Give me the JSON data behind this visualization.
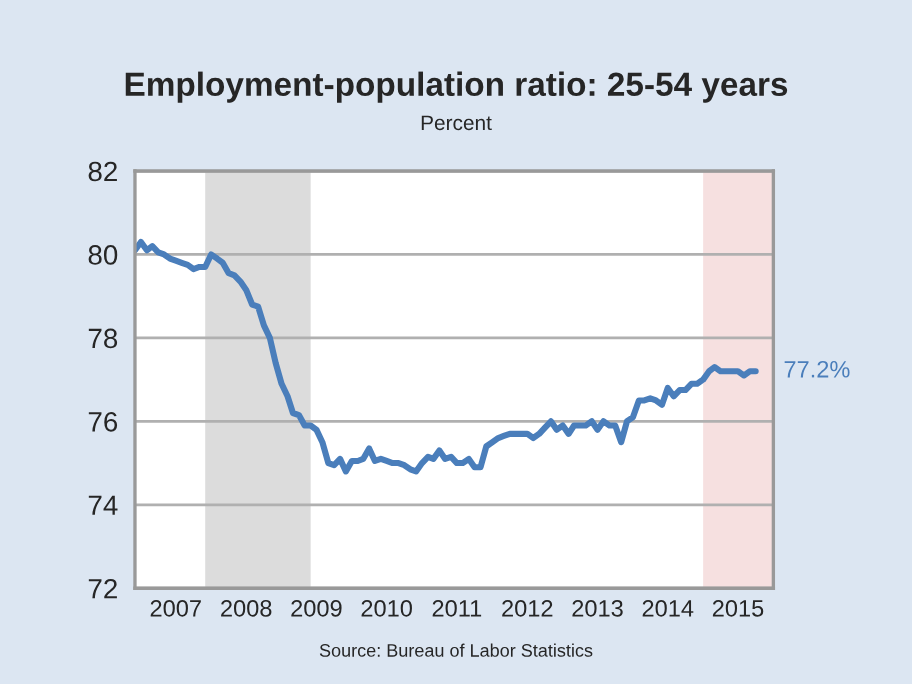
{
  "chart_data": {
    "type": "line",
    "title": "Employment-population ratio: 25-54 years",
    "subtitle": "Percent",
    "x": [
      "2006-12",
      "2007-01",
      "2007-02",
      "2007-03",
      "2007-04",
      "2007-05",
      "2007-06",
      "2007-07",
      "2007-08",
      "2007-09",
      "2007-10",
      "2007-11",
      "2007-12",
      "2008-01",
      "2008-02",
      "2008-03",
      "2008-04",
      "2008-05",
      "2008-06",
      "2008-07",
      "2008-08",
      "2008-09",
      "2008-10",
      "2008-11",
      "2008-12",
      "2009-01",
      "2009-02",
      "2009-03",
      "2009-04",
      "2009-05",
      "2009-06",
      "2009-07",
      "2009-08",
      "2009-09",
      "2009-10",
      "2009-11",
      "2009-12",
      "2010-01",
      "2010-02",
      "2010-03",
      "2010-04",
      "2010-05",
      "2010-06",
      "2010-07",
      "2010-08",
      "2010-09",
      "2010-10",
      "2010-11",
      "2010-12",
      "2011-01",
      "2011-02",
      "2011-03",
      "2011-04",
      "2011-05",
      "2011-06",
      "2011-07",
      "2011-08",
      "2011-09",
      "2011-10",
      "2011-11",
      "2011-12",
      "2012-01",
      "2012-02",
      "2012-03",
      "2012-04",
      "2012-05",
      "2012-06",
      "2012-07",
      "2012-08",
      "2012-09",
      "2012-10",
      "2012-11",
      "2012-12",
      "2013-01",
      "2013-02",
      "2013-03",
      "2013-04",
      "2013-05",
      "2013-06",
      "2013-07",
      "2013-08",
      "2013-09",
      "2013-10",
      "2013-11",
      "2013-12",
      "2014-01",
      "2014-02",
      "2014-03",
      "2014-04",
      "2014-05",
      "2014-06",
      "2014-07",
      "2014-08",
      "2014-09",
      "2014-10",
      "2014-11",
      "2014-12",
      "2015-01",
      "2015-02",
      "2015-03",
      "2015-04",
      "2015-05",
      "2015-06",
      "2015-07",
      "2015-08",
      "2015-09",
      "2015-10"
    ],
    "series": [
      {
        "color": "#4a7ebb",
        "values": [
          80.1,
          80.3,
          80.1,
          80.2,
          80.05,
          80.0,
          79.9,
          79.85,
          79.8,
          79.75,
          79.65,
          79.7,
          79.7,
          80.0,
          79.9,
          79.8,
          79.55,
          79.5,
          79.35,
          79.15,
          78.8,
          78.75,
          78.3,
          78.0,
          77.4,
          76.9,
          76.6,
          76.2,
          76.15,
          75.9,
          75.9,
          75.8,
          75.5,
          75.0,
          74.95,
          75.1,
          74.8,
          75.05,
          75.05,
          75.1,
          75.35,
          75.05,
          75.1,
          75.05,
          75.0,
          75.0,
          74.95,
          74.85,
          74.8,
          75.0,
          75.15,
          75.1,
          75.3,
          75.1,
          75.15,
          75.0,
          75.0,
          75.1,
          74.9,
          74.9,
          75.4,
          75.5,
          75.6,
          75.65,
          75.7,
          75.7,
          75.7,
          75.7,
          75.6,
          75.7,
          75.85,
          76.0,
          75.8,
          75.9,
          75.7,
          75.9,
          75.9,
          75.9,
          76.0,
          75.8,
          76.0,
          75.9,
          75.9,
          75.5,
          76.0,
          76.1,
          76.5,
          76.5,
          76.55,
          76.5,
          76.4,
          76.8,
          76.6,
          76.75,
          76.75,
          76.9,
          76.9,
          77.0,
          77.2,
          77.3,
          77.2,
          77.2,
          77.2,
          77.2,
          77.1,
          77.2,
          77.2
        ]
      }
    ],
    "xlim": [
      "2006-12",
      "2016-01"
    ],
    "xticks": [
      {
        "value": "2007-07-01",
        "label": "2007"
      },
      {
        "value": "2008-07-01",
        "label": "2008"
      },
      {
        "value": "2009-07-01",
        "label": "2009"
      },
      {
        "value": "2010-07-01",
        "label": "2010"
      },
      {
        "value": "2011-07-01",
        "label": "2011"
      },
      {
        "value": "2012-07-01",
        "label": "2012"
      },
      {
        "value": "2013-07-01",
        "label": "2013"
      },
      {
        "value": "2014-07-01",
        "label": "2014"
      },
      {
        "value": "2015-07-01",
        "label": "2015"
      }
    ],
    "ylim": [
      72,
      82
    ],
    "yticks": [
      72,
      74,
      76,
      78,
      80,
      82
    ],
    "grid": "y",
    "bands": [
      {
        "axis": "x",
        "from": "2007-12",
        "to": "2009-06",
        "color": "#dcdcdc"
      },
      {
        "axis": "x",
        "from": "2015-01",
        "to": "2016-01",
        "color": "#f6e0e0"
      }
    ],
    "annotations": [
      {
        "text": "77.2%",
        "x": "2015-10",
        "y": 77.2
      },
      "Source: Bureau of Labor Statistics"
    ]
  }
}
